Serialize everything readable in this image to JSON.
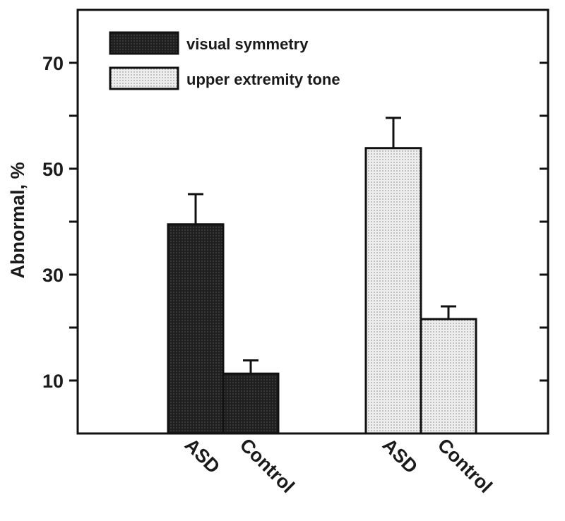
{
  "chart_data": {
    "type": "bar",
    "ylabel": "Abnormal, %",
    "ylim": [
      0,
      80
    ],
    "yticks_labeled": [
      10,
      30,
      50,
      70
    ],
    "yticks_minor": [
      20,
      40,
      60
    ],
    "legend_position": "top-left",
    "groups": [
      {
        "series": "visual symmetry",
        "categories": [
          "ASD",
          "Control"
        ],
        "values": [
          39.5,
          11.3
        ],
        "errors": [
          5.7,
          2.5
        ]
      },
      {
        "series": "upper extremity tone",
        "categories": [
          "ASD",
          "Control"
        ],
        "values": [
          53.9,
          21.6
        ],
        "errors": [
          5.7,
          2.4
        ]
      }
    ],
    "series": [
      {
        "name": "visual symmetry",
        "color": "#2b2b2b"
      },
      {
        "name": "upper extremity tone",
        "color": "#d4d4d4"
      }
    ]
  }
}
